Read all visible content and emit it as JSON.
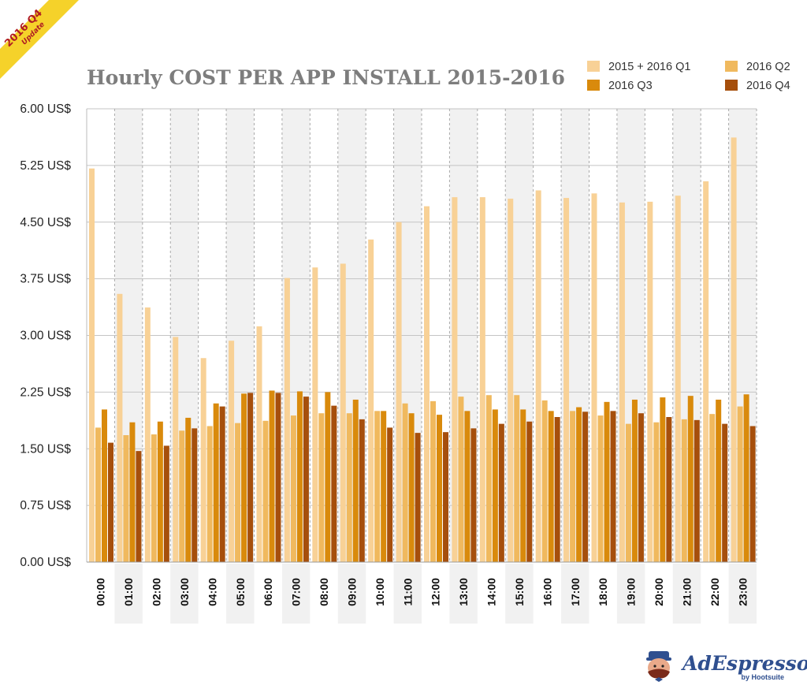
{
  "banner": {
    "line1": "2016 Q4",
    "line2": "Update"
  },
  "logo": {
    "name": "AdEspresso",
    "sub": "by Hootsuite"
  },
  "chart_data": {
    "type": "bar",
    "title": "Hourly COST PER APP INSTALL 2015-2016",
    "xlabel": "",
    "ylabel": "",
    "ylim": [
      0,
      6
    ],
    "yticks": [
      0,
      0.75,
      1.5,
      2.25,
      3,
      3.75,
      4.5,
      5.25,
      6
    ],
    "ytick_labels": [
      "0.00 US$",
      "0.75 US$",
      "1.50 US$",
      "2.25 US$",
      "3.00 US$",
      "3.75 US$",
      "4.50 US$",
      "5.25 US$",
      "6.00 US$"
    ],
    "grid": true,
    "legend_position": "top-right",
    "categories": [
      "00:00",
      "01:00",
      "02:00",
      "03:00",
      "04:00",
      "05:00",
      "06:00",
      "07:00",
      "08:00",
      "09:00",
      "10:00",
      "11:00",
      "12:00",
      "13:00",
      "14:00",
      "15:00",
      "16:00",
      "17:00",
      "18:00",
      "19:00",
      "20:00",
      "21:00",
      "22:00",
      "23:00"
    ],
    "series": [
      {
        "name": "2015 + 2016 Q1",
        "color": "#f8d196",
        "values": [
          5.21,
          3.55,
          3.37,
          2.98,
          2.7,
          2.93,
          3.12,
          3.76,
          3.9,
          3.95,
          4.27,
          4.5,
          4.71,
          4.83,
          4.83,
          4.81,
          4.92,
          4.82,
          4.88,
          4.76,
          4.77,
          4.85,
          5.04,
          5.62
        ]
      },
      {
        "name": "2016 Q2",
        "color": "#f0b95e",
        "values": [
          1.78,
          1.68,
          1.69,
          1.74,
          1.8,
          1.84,
          1.87,
          1.94,
          1.97,
          1.97,
          2.0,
          2.1,
          2.13,
          2.19,
          2.21,
          2.21,
          2.14,
          2.0,
          1.94,
          1.83,
          1.85,
          1.89,
          1.96,
          2.06
        ]
      },
      {
        "name": "2016 Q3",
        "color": "#d98a0c",
        "values": [
          2.02,
          1.85,
          1.86,
          1.91,
          2.1,
          2.23,
          2.27,
          2.26,
          2.25,
          2.15,
          2.0,
          1.97,
          1.95,
          2.0,
          2.02,
          2.02,
          2.0,
          2.05,
          2.12,
          2.15,
          2.18,
          2.2,
          2.15,
          2.22
        ]
      },
      {
        "name": "2016 Q4",
        "color": "#a64f0c",
        "values": [
          1.58,
          1.47,
          1.54,
          1.77,
          2.06,
          2.24,
          2.24,
          2.19,
          2.07,
          1.89,
          1.78,
          1.71,
          1.72,
          1.77,
          1.83,
          1.86,
          1.92,
          1.99,
          2.0,
          1.97,
          1.92,
          1.88,
          1.83,
          1.8
        ]
      }
    ]
  }
}
